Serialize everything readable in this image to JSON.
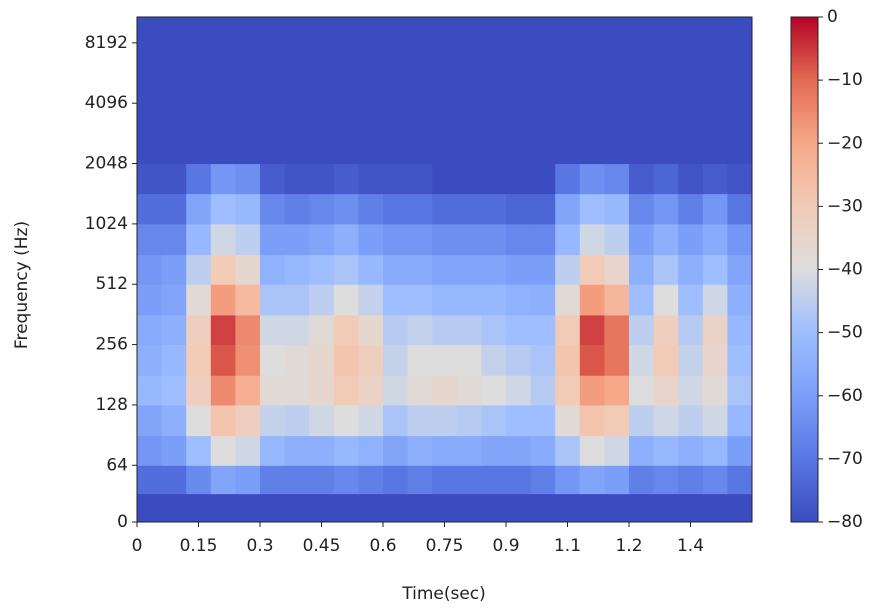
{
  "chart_data": {
    "type": "heatmap",
    "xlabel": "Time(sec)",
    "ylabel": "Frequency (Hz)",
    "colormap": "coolwarm",
    "clim": [
      -80,
      0
    ],
    "cticks": [
      0,
      {
        "value": -10,
        "label": "−10"
      },
      {
        "value": -20,
        "label": "−20"
      },
      {
        "value": -30,
        "label": "−30"
      },
      {
        "value": -40,
        "label": "−40"
      },
      {
        "value": -50,
        "label": "−50"
      },
      {
        "value": -60,
        "label": "−60"
      },
      {
        "value": -70,
        "label": "−70"
      },
      {
        "value": -80,
        "label": "−80"
      }
    ],
    "xlim": [
      0,
      1.5
    ],
    "xticks": [
      0,
      0.15,
      0.3,
      0.45,
      0.6,
      0.75,
      0.9,
      {
        "value": 1.05,
        "label": "1.1"
      },
      1.2,
      {
        "value": 1.35,
        "label": "1.4"
      }
    ],
    "ylim": [
      0,
      11025
    ],
    "yscale": "symlog",
    "linthresh": 64,
    "yticks": [
      0,
      64,
      128,
      256,
      512,
      1024,
      2048,
      4096,
      8192
    ],
    "x_bins": [
      0,
      0.06,
      0.12,
      0.18,
      0.24,
      0.3,
      0.36,
      0.42,
      0.48,
      0.54,
      0.6,
      0.66,
      0.72,
      0.78,
      0.84,
      0.9,
      0.96,
      1.02,
      1.08,
      1.14,
      1.2,
      1.26,
      1.32,
      1.38,
      1.44,
      1.5
    ],
    "y_bins": [
      0,
      32,
      64,
      90,
      128,
      180,
      256,
      360,
      512,
      720,
      1024,
      1450,
      2048,
      4096,
      11025
    ],
    "z": [
      [
        -80,
        -80,
        -80,
        -80,
        -80,
        -80,
        -80,
        -80,
        -80,
        -80,
        -80,
        -80,
        -80,
        -80,
        -80,
        -80,
        -80,
        -80,
        -80,
        -80,
        -80,
        -80,
        -80,
        -80,
        -80
      ],
      [
        -72,
        -72,
        -65,
        -58,
        -60,
        -68,
        -68,
        -68,
        -66,
        -68,
        -70,
        -68,
        -70,
        -70,
        -70,
        -70,
        -68,
        -62,
        -58,
        -60,
        -68,
        -66,
        -68,
        -66,
        -70
      ],
      [
        -62,
        -60,
        -50,
        -40,
        -42,
        -52,
        -55,
        -55,
        -52,
        -54,
        -58,
        -55,
        -56,
        -56,
        -58,
        -58,
        -56,
        -48,
        -40,
        -42,
        -55,
        -52,
        -55,
        -52,
        -60
      ],
      [
        -58,
        -55,
        -40,
        -28,
        -32,
        -44,
        -45,
        -42,
        -40,
        -42,
        -48,
        -45,
        -45,
        -46,
        -48,
        -50,
        -50,
        -38,
        -28,
        -30,
        -45,
        -42,
        -45,
        -42,
        -52
      ],
      [
        -52,
        -50,
        -32,
        -15,
        -22,
        -38,
        -38,
        -36,
        -30,
        -34,
        -42,
        -38,
        -36,
        -38,
        -40,
        -42,
        -46,
        -30,
        -18,
        -20,
        -40,
        -35,
        -42,
        -38,
        -48
      ],
      [
        -55,
        -52,
        -30,
        -8,
        -16,
        -40,
        -38,
        -36,
        -28,
        -32,
        -44,
        -40,
        -40,
        -40,
        -44,
        -46,
        -48,
        -28,
        -8,
        -12,
        -42,
        -30,
        -44,
        -35,
        -50
      ],
      [
        -56,
        -55,
        -32,
        -6,
        -15,
        -42,
        -42,
        -38,
        -30,
        -36,
        -46,
        -44,
        -46,
        -46,
        -48,
        -50,
        -50,
        -30,
        -6,
        -12,
        -45,
        -32,
        -46,
        -34,
        -52
      ],
      [
        -60,
        -58,
        -38,
        -18,
        -25,
        -48,
        -48,
        -45,
        -40,
        -44,
        -50,
        -50,
        -52,
        -52,
        -52,
        -54,
        -55,
        -38,
        -18,
        -24,
        -50,
        -40,
        -50,
        -42,
        -55
      ],
      [
        -62,
        -60,
        -45,
        -30,
        -36,
        -54,
        -52,
        -50,
        -48,
        -52,
        -56,
        -56,
        -58,
        -58,
        -58,
        -60,
        -60,
        -45,
        -30,
        -35,
        -55,
        -48,
        -55,
        -50,
        -58
      ],
      [
        -66,
        -66,
        -52,
        -42,
        -45,
        -60,
        -60,
        -58,
        -55,
        -60,
        -62,
        -62,
        -64,
        -64,
        -64,
        -66,
        -66,
        -52,
        -42,
        -45,
        -60,
        -55,
        -60,
        -56,
        -62
      ],
      [
        -72,
        -72,
        -58,
        -50,
        -52,
        -66,
        -68,
        -66,
        -64,
        -68,
        -70,
        -70,
        -72,
        -72,
        -72,
        -74,
        -74,
        -58,
        -50,
        -52,
        -66,
        -62,
        -68,
        -62,
        -70
      ],
      [
        -78,
        -78,
        -70,
        -62,
        -64,
        -76,
        -78,
        -78,
        -76,
        -78,
        -78,
        -78,
        -80,
        -80,
        -80,
        -80,
        -80,
        -70,
        -64,
        -66,
        -76,
        -74,
        -78,
        -76,
        -78
      ],
      [
        -80,
        -80,
        -80,
        -80,
        -80,
        -80,
        -80,
        -80,
        -80,
        -80,
        -80,
        -80,
        -80,
        -80,
        -80,
        -80,
        -80,
        -80,
        -80,
        -80,
        -80,
        -80,
        -80,
        -80,
        -80
      ],
      [
        -80,
        -80,
        -80,
        -80,
        -80,
        -80,
        -80,
        -80,
        -80,
        -80,
        -80,
        -80,
        -80,
        -80,
        -80,
        -80,
        -80,
        -80,
        -80,
        -80,
        -80,
        -80,
        -80,
        -80,
        -80
      ]
    ]
  }
}
